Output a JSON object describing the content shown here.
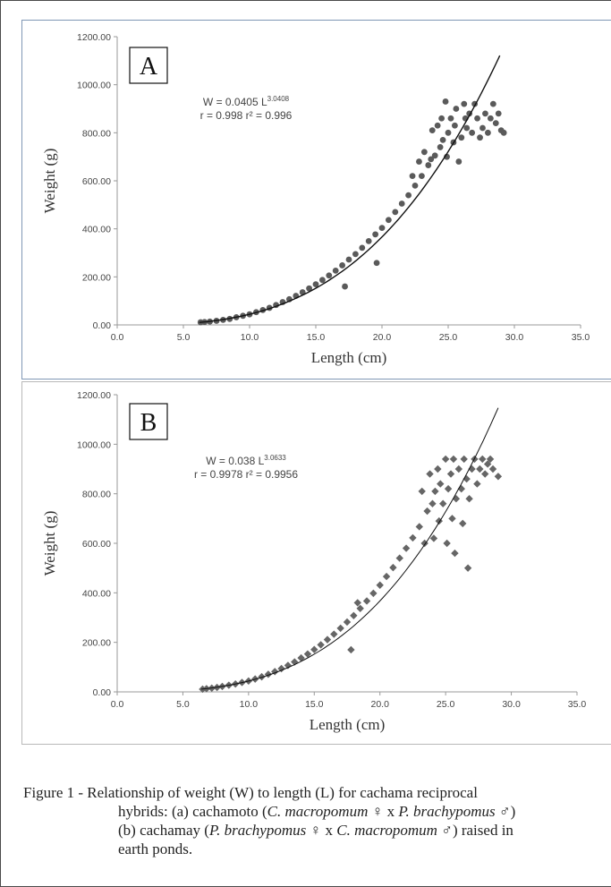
{
  "chart_data": [
    {
      "type": "scatter",
      "panel_label": "A",
      "xlabel": "Length (cm)",
      "ylabel": "Weight (g)",
      "xlim": [
        0,
        35
      ],
      "ylim": [
        0,
        1200
      ],
      "xticks": [
        "0.0",
        "5.0",
        "10.0",
        "15.0",
        "20.0",
        "25.0",
        "30.0",
        "35.0"
      ],
      "yticks": [
        "0.00",
        "200.00",
        "400.00",
        "600.00",
        "800.00",
        "1000.00",
        "1200.00"
      ],
      "marker": "circle",
      "point_color": "#5a5a5a",
      "fit": {
        "a": 0.0405,
        "b": 3.0408,
        "x_range": [
          6.2,
          28.9
        ]
      },
      "equation": {
        "base": "W = 0.0405 L",
        "exp": "3.0408",
        "stats": "r = 0.998    r² = 0.996"
      },
      "points": [
        [
          6.3,
          11
        ],
        [
          6.6,
          12
        ],
        [
          7.0,
          14
        ],
        [
          7.5,
          17
        ],
        [
          8.0,
          21
        ],
        [
          8.5,
          25
        ],
        [
          9.0,
          32
        ],
        [
          9.5,
          38
        ],
        [
          10.0,
          44
        ],
        [
          10.5,
          53
        ],
        [
          11.0,
          62
        ],
        [
          11.5,
          71
        ],
        [
          12.0,
          83
        ],
        [
          12.5,
          95
        ],
        [
          13.0,
          107
        ],
        [
          13.5,
          121
        ],
        [
          14.0,
          136
        ],
        [
          14.5,
          152
        ],
        [
          15.0,
          169
        ],
        [
          15.5,
          187
        ],
        [
          16.0,
          206
        ],
        [
          16.5,
          226
        ],
        [
          17.0,
          248
        ],
        [
          17.2,
          160
        ],
        [
          17.5,
          272
        ],
        [
          18.0,
          295
        ],
        [
          18.5,
          321
        ],
        [
          19.0,
          349
        ],
        [
          19.5,
          377
        ],
        [
          19.6,
          258
        ],
        [
          20.0,
          404
        ],
        [
          20.5,
          437
        ],
        [
          21.0,
          470
        ],
        [
          21.5,
          505
        ],
        [
          22.0,
          540
        ],
        [
          22.3,
          620
        ],
        [
          22.5,
          580
        ],
        [
          22.8,
          680
        ],
        [
          23.0,
          620
        ],
        [
          23.2,
          720
        ],
        [
          23.5,
          665
        ],
        [
          23.7,
          690
        ],
        [
          23.8,
          810
        ],
        [
          24.0,
          705
        ],
        [
          24.2,
          830
        ],
        [
          24.4,
          740
        ],
        [
          24.5,
          860
        ],
        [
          24.6,
          770
        ],
        [
          24.8,
          930
        ],
        [
          24.9,
          700
        ],
        [
          25.0,
          800
        ],
        [
          25.2,
          860
        ],
        [
          25.4,
          760
        ],
        [
          25.5,
          830
        ],
        [
          25.6,
          900
        ],
        [
          25.8,
          680
        ],
        [
          26.0,
          780
        ],
        [
          26.2,
          920
        ],
        [
          26.3,
          860
        ],
        [
          26.4,
          820
        ],
        [
          26.6,
          880
        ],
        [
          26.8,
          800
        ],
        [
          27.0,
          920
        ],
        [
          27.2,
          860
        ],
        [
          27.4,
          780
        ],
        [
          27.6,
          820
        ],
        [
          27.8,
          880
        ],
        [
          28.0,
          800
        ],
        [
          28.2,
          860
        ],
        [
          28.4,
          920
        ],
        [
          28.6,
          840
        ],
        [
          28.8,
          880
        ],
        [
          29.0,
          810
        ],
        [
          29.2,
          800
        ]
      ]
    },
    {
      "type": "scatter",
      "panel_label": "B",
      "xlabel": "Length (cm)",
      "ylabel": "Weight (g)",
      "xlim": [
        0,
        35
      ],
      "ylim": [
        0,
        1200
      ],
      "xticks": [
        "0.0",
        "5.0",
        "10.0",
        "15.0",
        "20.0",
        "25.0",
        "30.0",
        "35.0"
      ],
      "yticks": [
        "0.00",
        "200.00",
        "400.00",
        "600.00",
        "800.00",
        "1000.00",
        "1200.00"
      ],
      "marker": "diamond",
      "point_color": "#666666",
      "fit": {
        "a": 0.038,
        "b": 3.0633,
        "x_range": [
          6.4,
          29.0
        ]
      },
      "equation": {
        "base": "W = 0.038 L",
        "exp": "3.0633",
        "stats": "r = 0.9978   r² = 0.9956"
      },
      "points": [
        [
          6.5,
          11
        ],
        [
          6.8,
          13
        ],
        [
          7.2,
          15
        ],
        [
          7.6,
          18
        ],
        [
          8.0,
          22
        ],
        [
          8.5,
          27
        ],
        [
          9.0,
          32
        ],
        [
          9.5,
          38
        ],
        [
          10.0,
          44
        ],
        [
          10.5,
          52
        ],
        [
          11.0,
          61
        ],
        [
          11.5,
          71
        ],
        [
          12.0,
          82
        ],
        [
          12.5,
          94
        ],
        [
          13.0,
          107
        ],
        [
          13.5,
          121
        ],
        [
          14.0,
          137
        ],
        [
          14.5,
          153
        ],
        [
          15.0,
          171
        ],
        [
          15.5,
          190
        ],
        [
          16.0,
          211
        ],
        [
          16.5,
          233
        ],
        [
          17.0,
          257
        ],
        [
          17.5,
          282
        ],
        [
          17.8,
          170
        ],
        [
          18.0,
          308
        ],
        [
          18.3,
          360
        ],
        [
          18.5,
          337
        ],
        [
          19.0,
          367
        ],
        [
          19.5,
          398
        ],
        [
          20.0,
          431
        ],
        [
          20.5,
          466
        ],
        [
          21.0,
          502
        ],
        [
          21.5,
          540
        ],
        [
          22.0,
          580
        ],
        [
          22.5,
          622
        ],
        [
          23.0,
          667
        ],
        [
          23.2,
          810
        ],
        [
          23.4,
          600
        ],
        [
          23.6,
          730
        ],
        [
          23.8,
          880
        ],
        [
          24.0,
          760
        ],
        [
          24.1,
          620
        ],
        [
          24.2,
          810
        ],
        [
          24.4,
          900
        ],
        [
          24.5,
          690
        ],
        [
          24.6,
          840
        ],
        [
          24.8,
          760
        ],
        [
          25.0,
          940
        ],
        [
          25.1,
          600
        ],
        [
          25.2,
          820
        ],
        [
          25.4,
          880
        ],
        [
          25.5,
          700
        ],
        [
          25.6,
          940
        ],
        [
          25.7,
          560
        ],
        [
          25.8,
          780
        ],
        [
          26.0,
          900
        ],
        [
          26.2,
          820
        ],
        [
          26.3,
          680
        ],
        [
          26.4,
          940
        ],
        [
          26.6,
          860
        ],
        [
          26.7,
          500
        ],
        [
          26.8,
          780
        ],
        [
          27.0,
          900
        ],
        [
          27.2,
          940
        ],
        [
          27.4,
          840
        ],
        [
          27.6,
          900
        ],
        [
          27.8,
          940
        ],
        [
          28.0,
          880
        ],
        [
          28.2,
          920
        ],
        [
          28.4,
          940
        ],
        [
          28.6,
          900
        ],
        [
          29.0,
          870
        ]
      ]
    }
  ],
  "caption": {
    "first_line": "Figure 1 - Relationship of weight (W) to length (L) for cachama reciprocal",
    "line2_a": "hybrids: (a) cachamoto (",
    "line2_sp1": "C. macropomum",
    "line2_b": " ♀ x ",
    "line2_sp2": "P. brachypomus",
    "line2_c": " ♂)",
    "line3_a": "(b) cachamay (",
    "line3_sp1": "P. brachypomus",
    "line3_b": " ♀ x ",
    "line3_sp2": "C. macropomum",
    "line3_c": " ♂) raised in",
    "line4": "earth ponds."
  }
}
